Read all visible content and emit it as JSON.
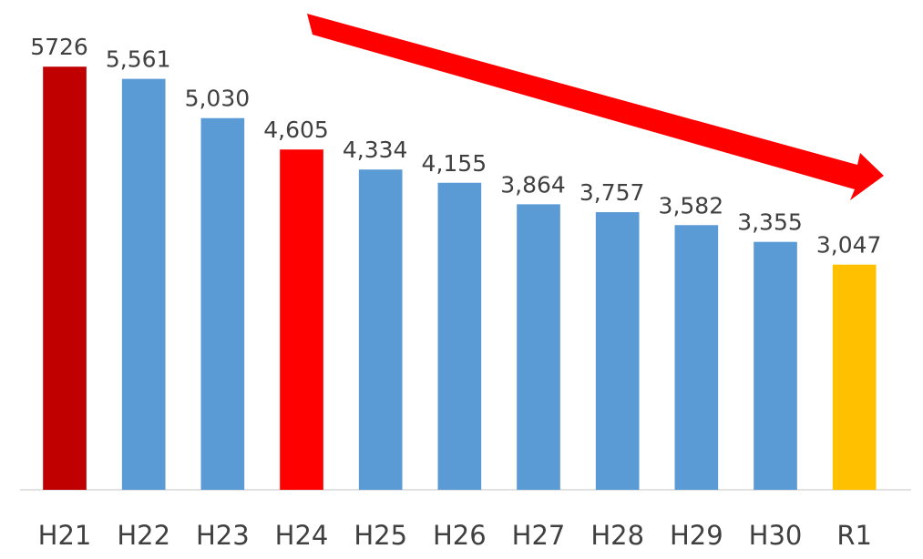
{
  "chart_data": {
    "type": "bar",
    "categories": [
      "H21",
      "H22",
      "H23",
      "H24",
      "H25",
      "H26",
      "H27",
      "H28",
      "H29",
      "H30",
      "R1"
    ],
    "values": [
      5726,
      5561,
      5030,
      4605,
      4334,
      4155,
      3864,
      3757,
      3582,
      3355,
      3047
    ],
    "value_labels": [
      "5726",
      "5,561",
      "5,030",
      "4,605",
      "4,334",
      "4,155",
      "3,864",
      "3,757",
      "3,582",
      "3,355",
      "3,047"
    ],
    "colors": [
      "#c00000",
      "#5b9bd5",
      "#5b9bd5",
      "#ff0000",
      "#5b9bd5",
      "#5b9bd5",
      "#5b9bd5",
      "#5b9bd5",
      "#5b9bd5",
      "#5b9bd5",
      "#ffc000"
    ],
    "ylim": [
      0,
      6000
    ]
  }
}
